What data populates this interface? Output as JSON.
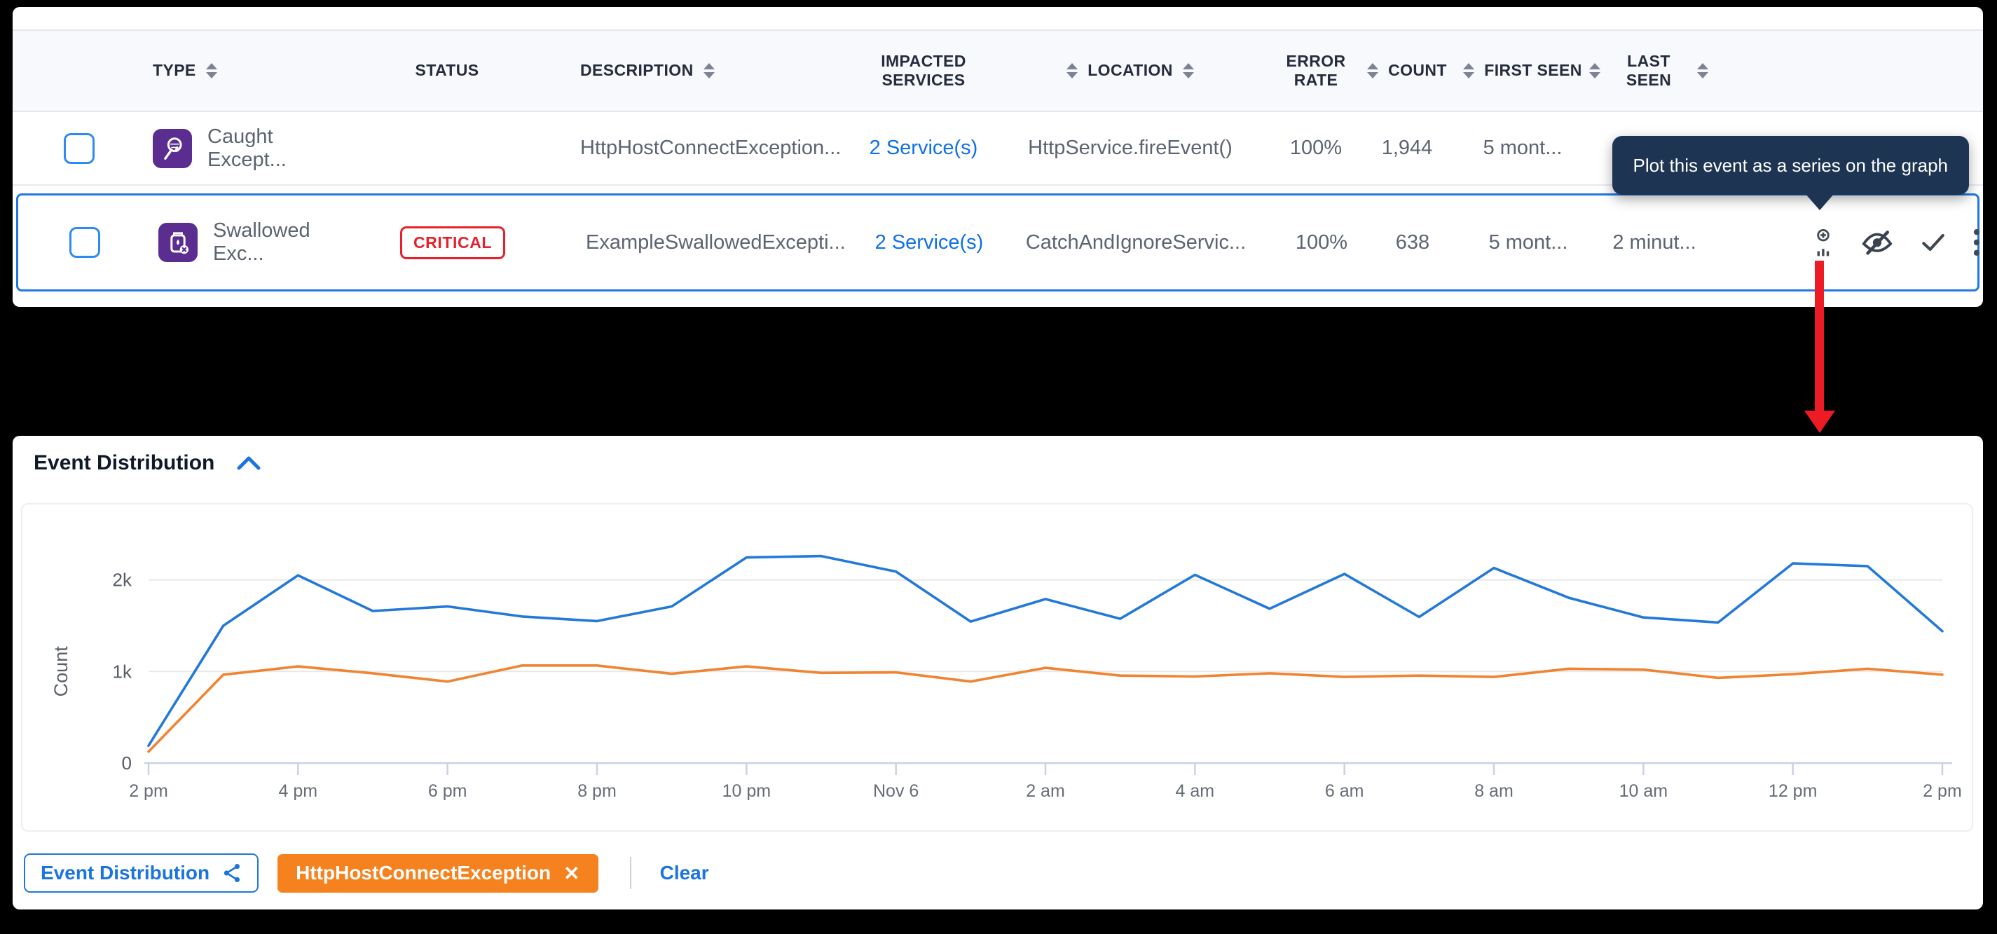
{
  "table": {
    "headers": [
      {
        "key": "select",
        "label": ""
      },
      {
        "key": "type",
        "label": "TYPE",
        "sort_after": true
      },
      {
        "key": "status",
        "label": "STATUS"
      },
      {
        "key": "description",
        "label": "DESCRIPTION",
        "sort_after": true
      },
      {
        "key": "impacted",
        "label": "IMPACTED SERVICES"
      },
      {
        "key": "location",
        "label": "LOCATION",
        "sort_before": true,
        "sort_after": true
      },
      {
        "key": "error_rate",
        "label": "ERROR RATE"
      },
      {
        "key": "count",
        "label": "COUNT",
        "sort_before": true
      },
      {
        "key": "first_seen",
        "label": "FIRST SEEN",
        "sort_before": true
      },
      {
        "key": "last_seen",
        "label": "LAST SEEN",
        "sort_before": true,
        "sort_after": true
      },
      {
        "key": "actions",
        "label": ""
      }
    ],
    "rows": [
      {
        "type": "Caught Except...",
        "type_icon": "caught-exception-icon",
        "status": "",
        "description": "HttpHostConnectException...",
        "impacted": "2 Service(s)",
        "location": "HttpService.fireEvent()",
        "error_rate": "100%",
        "count": "1,944",
        "first_seen": "5 mont...",
        "last_seen": "",
        "selected": false,
        "actions": []
      },
      {
        "type": "Swallowed Exc...",
        "type_icon": "swallowed-exception-icon",
        "status": "CRITICAL",
        "description": "ExampleSwallowedExcepti...",
        "impacted": "2 Service(s)",
        "location": "CatchAndIgnoreServic...",
        "error_rate": "100%",
        "count": "638",
        "first_seen": "5 mont...",
        "last_seen": "2 minut...",
        "selected": true,
        "actions": [
          "plot-on-graph",
          "hide",
          "resolve",
          "more"
        ]
      }
    ]
  },
  "tooltip": {
    "text": "Plot this event as a series on the graph",
    "bg": "#1d3553"
  },
  "chart_header": {
    "title": "Event Distribution"
  },
  "chart_data": {
    "type": "line",
    "title": "Event Distribution",
    "xlabel": "",
    "ylabel": "Count",
    "y_ticks": [
      {
        "label": "0",
        "value": 0
      },
      {
        "label": "1k",
        "value": 1000
      },
      {
        "label": "2k",
        "value": 2000
      }
    ],
    "ylim": [
      0,
      2400
    ],
    "grid": "horizontal",
    "legend_position": "bottom",
    "x_tick_labels": [
      "2 pm",
      "4 pm",
      "6 pm",
      "8 pm",
      "10 pm",
      "Nov 6",
      "2 am",
      "4 am",
      "6 am",
      "8 am",
      "10 am",
      "12 pm",
      "2 pm"
    ],
    "points_per_tick": 2,
    "series": [
      {
        "name": "Event Distribution",
        "color": "#2379d9",
        "values": [
          190,
          1500,
          2050,
          1660,
          1710,
          1600,
          1550,
          1710,
          2245,
          2260,
          2090,
          1545,
          1790,
          1575,
          2055,
          1685,
          2065,
          1595,
          2130,
          1805,
          1590,
          1535,
          2180,
          2150,
          1440
        ]
      },
      {
        "name": "HttpHostConnectException",
        "color": "#ef8432",
        "values": [
          125,
          965,
          1055,
          980,
          890,
          1065,
          1065,
          975,
          1055,
          985,
          990,
          890,
          1040,
          955,
          945,
          980,
          940,
          955,
          940,
          1030,
          1020,
          930,
          970,
          1030,
          965
        ]
      }
    ]
  },
  "legend": {
    "series_button": "Event Distribution",
    "chip_label": "HttpHostConnectException",
    "chip_close": "✕",
    "clear_label": "Clear",
    "chip_color": "#f5821f",
    "accent": "#1b74e0"
  }
}
